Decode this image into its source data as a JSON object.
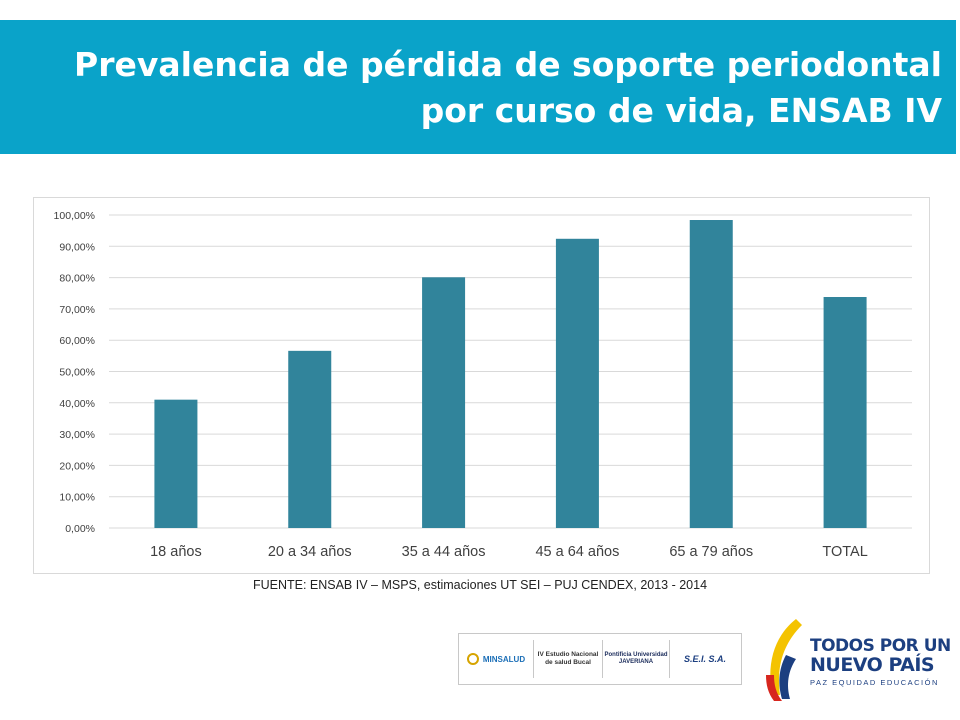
{
  "header": {
    "title_line1": "Prevalencia de pérdida de soporte periodontal",
    "title_line2": "por curso de vida, ENSAB IV"
  },
  "colors": {
    "banner": "#0aa3c9",
    "bar": "#31849b",
    "grid": "#d9d9d9"
  },
  "chart_data": {
    "type": "bar",
    "categories": [
      "18 años",
      "20 a 34 años",
      "35 a 44 años",
      "45 a 64 años",
      "65 a 79 años",
      "TOTAL"
    ],
    "values": [
      41.0,
      56.6,
      80.1,
      92.4,
      98.4,
      73.8
    ],
    "y_ticks": [
      "0,00%",
      "10,00%",
      "20,00%",
      "30,00%",
      "40,00%",
      "50,00%",
      "60,00%",
      "70,00%",
      "80,00%",
      "90,00%",
      "100,00%"
    ],
    "ylim": [
      0,
      100
    ],
    "grid": true,
    "legend": false,
    "title": "",
    "xlabel": "",
    "ylabel": ""
  },
  "source": {
    "text": "FUENTE: ENSAB IV – MSPS, estimaciones UT SEI – PUJ CENDEX, 2013 - 2014"
  },
  "logos": {
    "minsalud": "MINSALUD",
    "iv_estudio": "IV Estudio Nacional de salud Bucal",
    "javeriana": "Pontificia Universidad JAVERIANA",
    "sei": "S.E.I. S.A."
  },
  "brand": {
    "line1": "TODOS POR UN",
    "line2": "NUEVO PAÍS",
    "line3": "PAZ  EQUIDAD  EDUCACIÓN"
  }
}
